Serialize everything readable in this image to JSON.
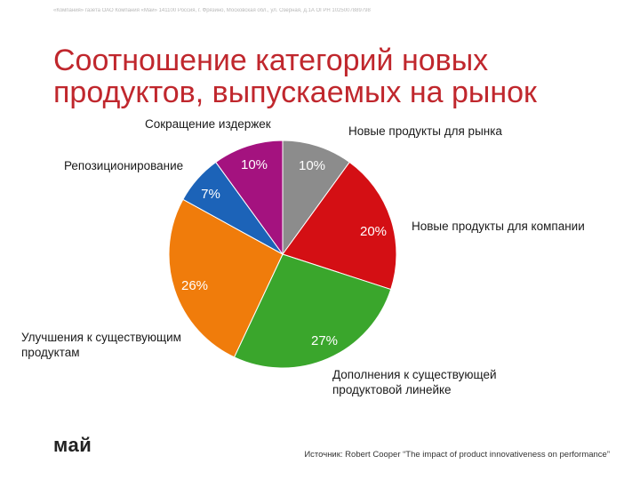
{
  "header_line": "«Компания» газета ОАО Компания «Май» 141100 Россия, г. Фрязино, Московская обл., ул. Озерная, д.1А ОГРН 1025007889798",
  "title": {
    "line1": "Соотношение категорий новых",
    "line2": "продуктов, выпускаемых на рынок"
  },
  "chart_data": {
    "type": "pie",
    "start_angle_deg": 0,
    "direction": "clockwise",
    "slices": [
      {
        "label": "Новые продукты для рынка",
        "value": 10,
        "display": "10%",
        "color": "#8c8c8c"
      },
      {
        "label": "Новые продукты для компании",
        "value": 20,
        "display": "20%",
        "color": "#d40f14"
      },
      {
        "label": "Дополнения к существующей продуктовой линейке",
        "label_lines": [
          "Дополнения к существующей",
          "продуктовой линейке"
        ],
        "value": 27,
        "display": "27%",
        "color": "#3aa62c"
      },
      {
        "label": "Улучшения к существующим продуктам",
        "label_lines": [
          "Улучшения к существующим",
          "продуктам"
        ],
        "value": 26,
        "display": "26%",
        "color": "#f07c0b"
      },
      {
        "label": "Репозиционирование",
        "value": 7,
        "display": "7%",
        "color": "#1c63b8"
      },
      {
        "label": "Сокращение издержек",
        "value": 10,
        "display": "10%",
        "color": "#a4127f"
      }
    ]
  },
  "logo": "май",
  "source": "Источник: Robert Cooper “The impact of product innovativeness on performance”"
}
